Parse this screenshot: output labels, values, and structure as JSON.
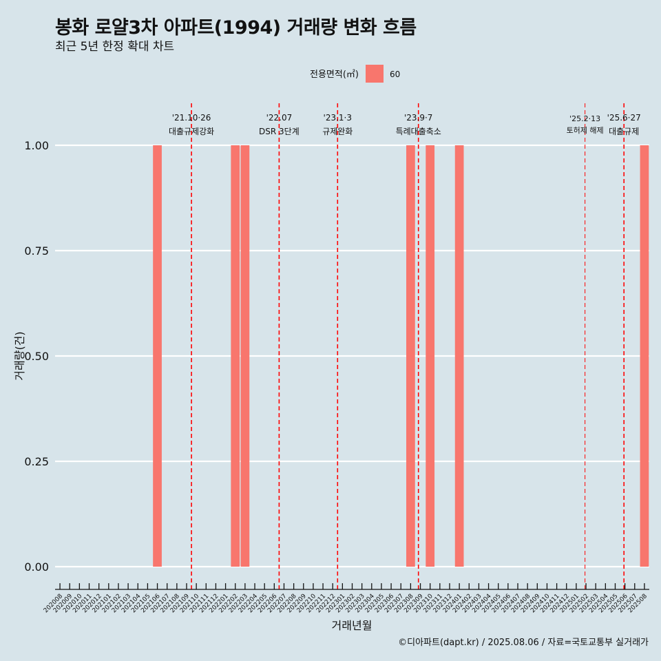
{
  "title": "봉화 로얄3차 아파트(1994) 거래량 변화 흐름",
  "subtitle": "최근 5년 한정 확대 차트",
  "caption": "©디아파트(dapt.kr) / 2025.08.06 / 자료=국토교통부 실거래가",
  "colors": {
    "background": "#d7e4ea",
    "bar": "#f8766d",
    "event_line": "#ff0000",
    "grid": "#ffffff"
  },
  "chart_data": {
    "type": "bar",
    "xlabel": "거래년월",
    "ylabel": "거래량(건)",
    "ylim": [
      0,
      1
    ],
    "y_ticks": [
      "0.00",
      "0.25",
      "0.50",
      "0.75",
      "1.00"
    ],
    "grid": true,
    "legend": {
      "title": "전용면적(㎡)",
      "position": "top",
      "entries": [
        "60"
      ]
    },
    "categories": [
      "202008",
      "202009",
      "202010",
      "202011",
      "202012",
      "202101",
      "202102",
      "202103",
      "202104",
      "202105",
      "202106",
      "202107",
      "202108",
      "202109",
      "202110",
      "202111",
      "202112",
      "202201",
      "202202",
      "202203",
      "202204",
      "202205",
      "202206",
      "202207",
      "202208",
      "202209",
      "202210",
      "202211",
      "202212",
      "202301",
      "202302",
      "202303",
      "202304",
      "202305",
      "202306",
      "202307",
      "202308",
      "202309",
      "202310",
      "202311",
      "202312",
      "202401",
      "202402",
      "202403",
      "202404",
      "202405",
      "202406",
      "202407",
      "202408",
      "202409",
      "202410",
      "202411",
      "202412",
      "202501",
      "202502",
      "202503",
      "202504",
      "202505",
      "202506",
      "202507",
      "202508"
    ],
    "series": [
      {
        "name": "60",
        "values": [
          0,
          0,
          0,
          0,
          0,
          0,
          0,
          0,
          0,
          0,
          1,
          0,
          0,
          0,
          0,
          0,
          0,
          0,
          1,
          1,
          0,
          0,
          0,
          0,
          0,
          0,
          0,
          0,
          0,
          0,
          0,
          0,
          0,
          0,
          0,
          0,
          1,
          0,
          1,
          0,
          0,
          1,
          0,
          0,
          0,
          0,
          0,
          0,
          0,
          0,
          0,
          0,
          0,
          0,
          0,
          0,
          0,
          0,
          0,
          0,
          1
        ]
      }
    ],
    "events": [
      {
        "date_label": "'21.10·26",
        "text": "대출규제강화",
        "position": 14.0,
        "style": "major"
      },
      {
        "date_label": "'22.07",
        "text": "DSR 3단계",
        "position": 23.0,
        "style": "major"
      },
      {
        "date_label": "'23.1·3",
        "text": "규제완화",
        "position": 29.0,
        "style": "major"
      },
      {
        "date_label": "'23.9·7",
        "text": "특례대출축소",
        "position": 37.3,
        "style": "major"
      },
      {
        "date_label": "'25.2·13",
        "text": "토허제 해제",
        "position": 54.4,
        "style": "minor"
      },
      {
        "date_label": "'25.6·27",
        "text": "대출규제",
        "position": 58.4,
        "style": "major"
      }
    ]
  }
}
